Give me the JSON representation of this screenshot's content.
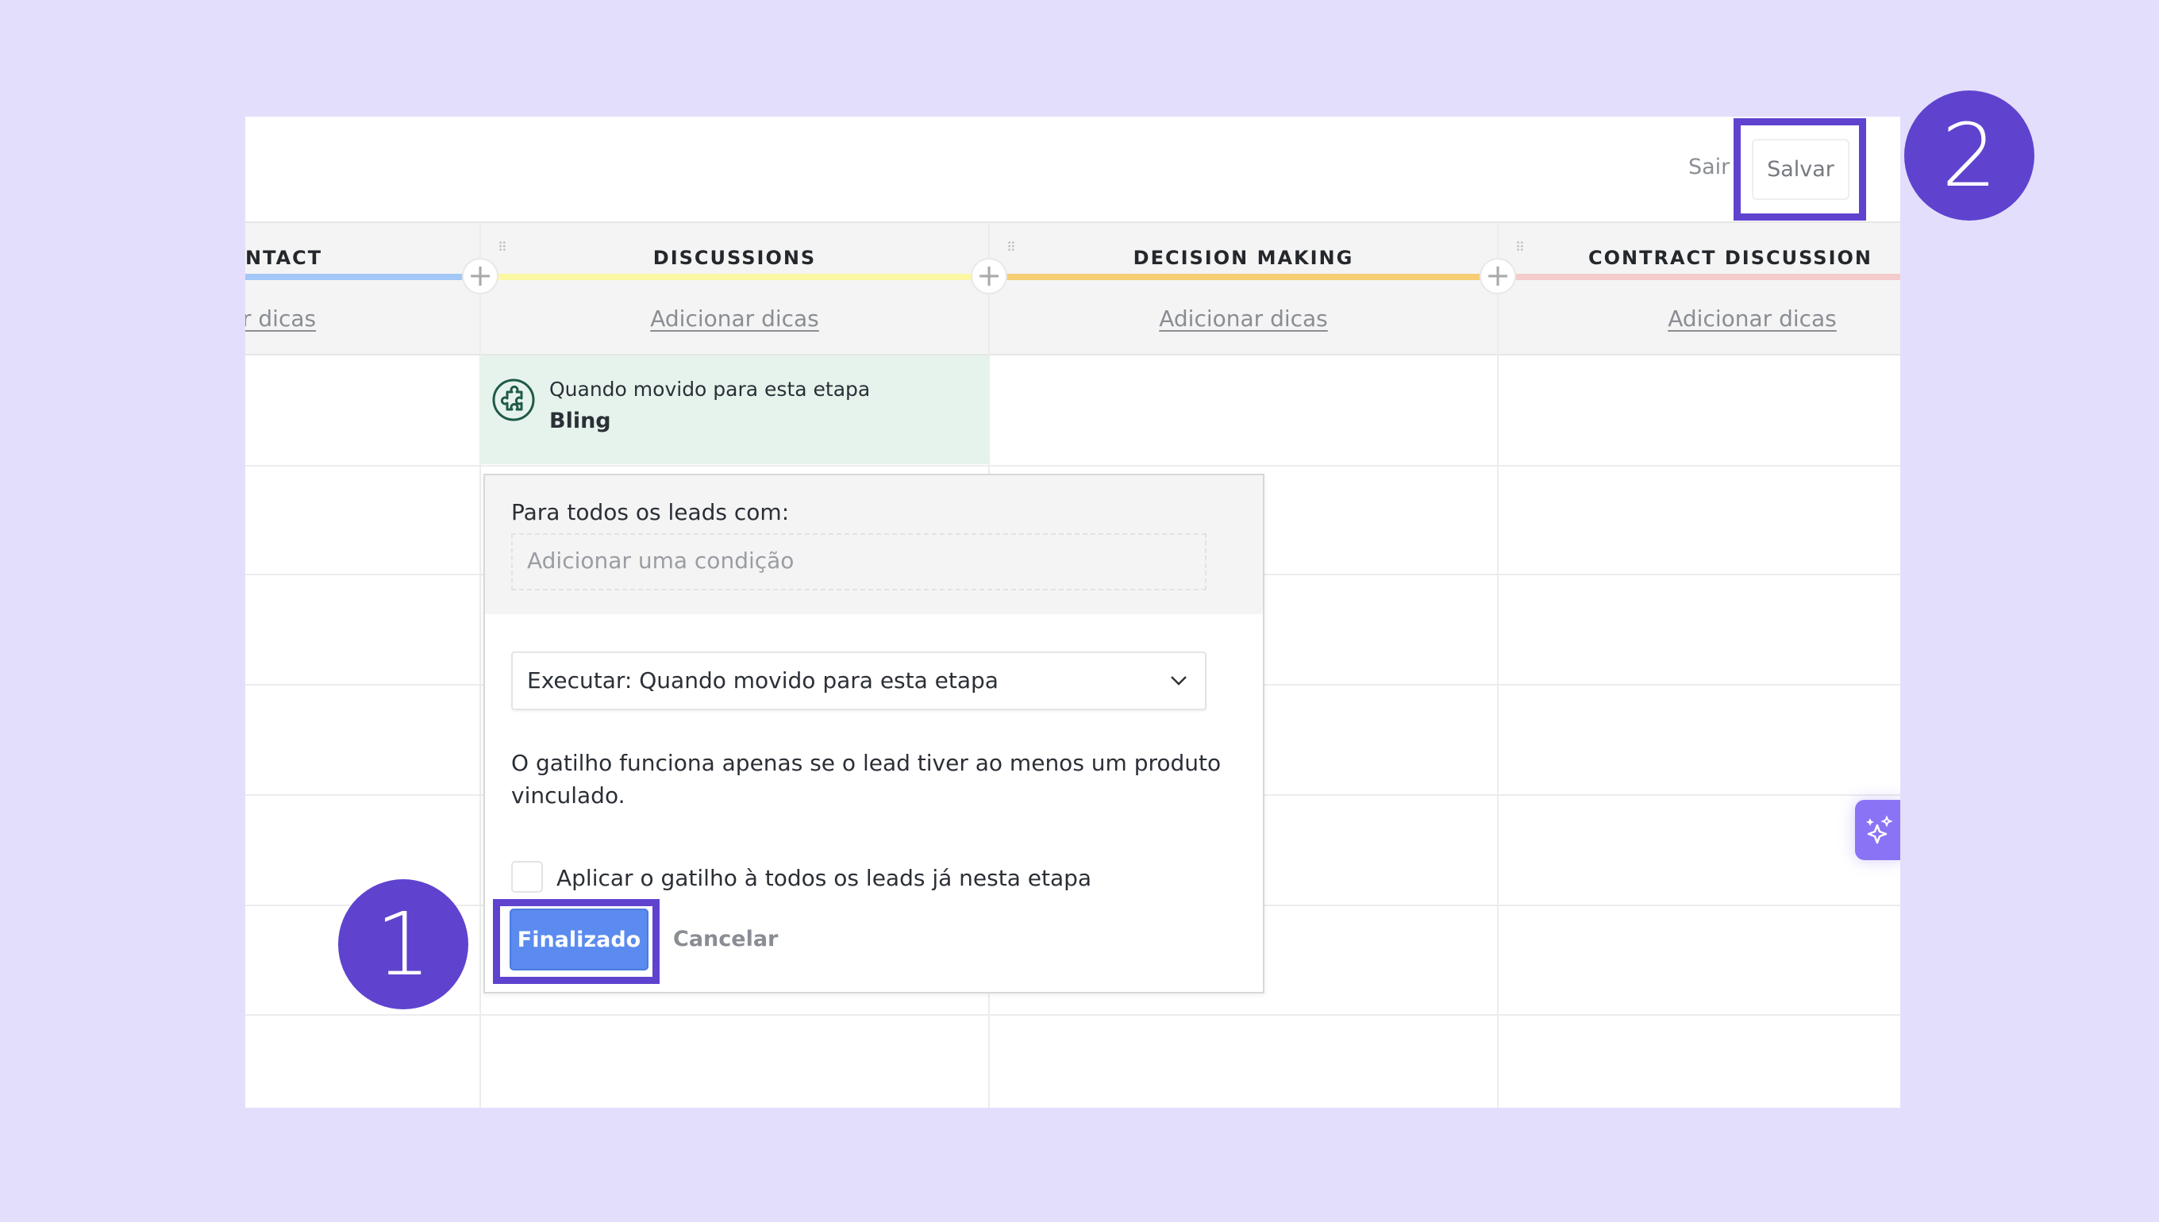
{
  "topbar": {
    "exit_label": "Sair",
    "save_label": "Salvar"
  },
  "columns": [
    {
      "title": "NTACT",
      "tips": "r dicas",
      "color": "#a3c8f7"
    },
    {
      "title": "DISCUSSIONS",
      "tips": "Adicionar dicas",
      "color": "#fbf7a3"
    },
    {
      "title": "DECISION MAKING",
      "tips": "Adicionar dicas",
      "color": "#f5cd72"
    },
    {
      "title": "CONTRACT DISCUSSION",
      "tips": "Adicionar dicas",
      "color": "#f5cbcb"
    }
  ],
  "trigger_card": {
    "subtitle": "Quando movido para esta etapa",
    "name": "Bling",
    "icon": "puzzle-icon"
  },
  "popover": {
    "condition_label": "Para todos os leads com:",
    "condition_placeholder": "Adicionar uma condição",
    "execute_select": "Executar: Quando movido para esta etapa",
    "note_line1": "O gatilho funciona apenas se o lead tiver ao menos um produto",
    "note_line2": "vinculado.",
    "apply_checkbox_label": "Aplicar o gatilho à todos os leads já nesta etapa",
    "apply_checked": false,
    "done_label": "Finalizado",
    "cancel_label": "Cancelar"
  },
  "annotations": {
    "step1": "1",
    "step2": "2",
    "color": "#5f43cf"
  },
  "colors": {
    "background": "#e4defd",
    "primary_button": "#5b8bef",
    "ai_button": "#8b73f5"
  }
}
